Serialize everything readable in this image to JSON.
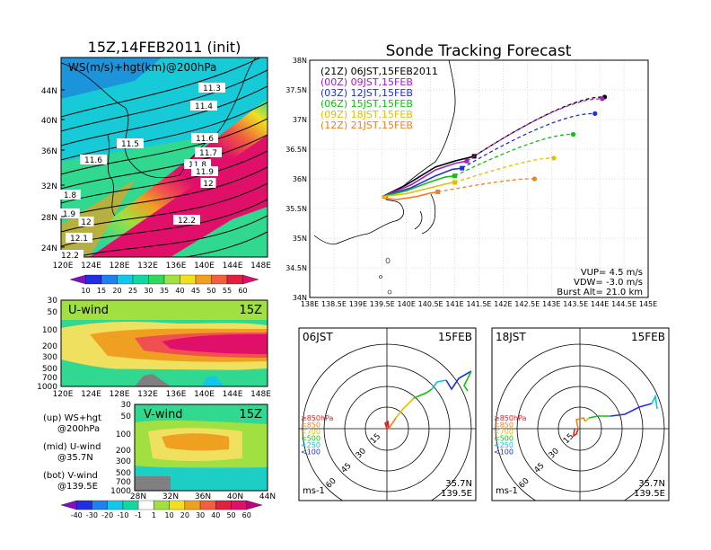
{
  "left": {
    "title": "15Z,14FEB2011 (init)",
    "map": {
      "label": "WS(m/s)+hgt(km)@200hPa",
      "lat_ticks": [
        "44N",
        "40N",
        "36N",
        "32N",
        "28N",
        "24N"
      ],
      "lon_ticks": [
        "120E",
        "124E",
        "128E",
        "132E",
        "136E",
        "140E",
        "144E",
        "148E"
      ],
      "contour_labels": [
        "11.3",
        "11.4",
        "11.5",
        "11.6",
        "11.6",
        "11.7",
        "11.8",
        "11.9",
        "12",
        "1.8",
        "1.9",
        "12",
        "12.1",
        "12.2",
        "12.2"
      ],
      "colorbar": [
        "10",
        "15",
        "20",
        "25",
        "30",
        "35",
        "40",
        "45",
        "50",
        "55",
        "60"
      ]
    },
    "uwind": {
      "label": "U-wind",
      "time": "15Z",
      "p_ticks": [
        "30",
        "50",
        "100",
        "200",
        "300",
        "500",
        "700",
        "1000"
      ],
      "lon_ticks": [
        "120E",
        "124E",
        "128E",
        "132E",
        "136E",
        "140E",
        "144E",
        "148E"
      ]
    },
    "vwind": {
      "label": "V-wind",
      "time": "15Z",
      "p_ticks": [
        "30",
        "50",
        "100",
        "200",
        "300",
        "500",
        "700",
        "1000"
      ],
      "lat_ticks": [
        "28N",
        "32N",
        "36N",
        "40N",
        "44N"
      ]
    },
    "notes": [
      {
        "a": "(up) WS+hgt",
        "b": "@200hPa"
      },
      {
        "a": "(mid) U-wind",
        "b": "@35.7N"
      },
      {
        "a": "(bot) V-wind",
        "b": "@139.5E"
      }
    ],
    "colorbar2": [
      "-40",
      "-30",
      "-20",
      "-10",
      "-1",
      "1",
      "10",
      "20",
      "30",
      "40",
      "50",
      "60"
    ]
  },
  "right": {
    "title": "Sonde Tracking Forecast",
    "chart_data": {
      "type": "line",
      "xlabel": "",
      "ylabel": "",
      "xlim": [
        138,
        145
      ],
      "ylim": [
        34,
        38
      ],
      "x_ticks": [
        "138E",
        "138.5E",
        "139E",
        "139.5E",
        "140E",
        "140.5E",
        "141E",
        "141.5E",
        "142E",
        "142.5E",
        "143E",
        "143.5E",
        "144E",
        "144.5E",
        "145E"
      ],
      "y_ticks": [
        "34N",
        "34.5N",
        "35N",
        "35.5N",
        "36N",
        "36.5N",
        "37N",
        "37.5N",
        "38N"
      ],
      "launch": [
        139.5,
        35.7
      ],
      "series": [
        {
          "name": "(21Z) 06JST,15FEB2011",
          "color": "#000000",
          "points": [
            [
              139.5,
              35.7
            ],
            [
              140.0,
              35.9
            ],
            [
              140.6,
              36.2
            ],
            [
              141.0,
              36.3
            ],
            [
              141.4,
              36.38
            ]
          ],
          "end": [
            144.1,
            37.38
          ]
        },
        {
          "name": "(00Z) 09JST,15FEB",
          "color": "#a020c0",
          "points": [
            [
              139.5,
              35.7
            ],
            [
              140.1,
              35.9
            ],
            [
              140.6,
              36.15
            ],
            [
              141.0,
              36.26
            ],
            [
              141.25,
              36.3
            ]
          ],
          "end": [
            144.05,
            37.35
          ]
        },
        {
          "name": "(03Z) 12JST,15FEB",
          "color": "#2030e0",
          "points": [
            [
              139.5,
              35.7
            ],
            [
              140.1,
              35.85
            ],
            [
              140.6,
              36.05
            ],
            [
              140.95,
              36.16
            ],
            [
              141.15,
              36.18
            ]
          ],
          "end": [
            143.9,
            37.1
          ]
        },
        {
          "name": "(06Z) 15JST,15FEB",
          "color": "#10c010",
          "points": [
            [
              139.5,
              35.7
            ],
            [
              140.0,
              35.8
            ],
            [
              140.5,
              35.95
            ],
            [
              140.8,
              36.03
            ],
            [
              141.0,
              36.05
            ]
          ],
          "end": [
            143.45,
            36.75
          ]
        },
        {
          "name": "(09Z) 18JST,15FEB",
          "color": "#e0c000",
          "points": [
            [
              139.5,
              35.7
            ],
            [
              140.0,
              35.75
            ],
            [
              140.5,
              35.85
            ],
            [
              140.9,
              35.93
            ],
            [
              141.0,
              35.94
            ]
          ],
          "end": [
            143.05,
            36.35
          ]
        },
        {
          "name": "(12Z) 21JST,15FEB",
          "color": "#f08020",
          "points": [
            [
              139.5,
              35.68
            ],
            [
              139.8,
              35.65
            ],
            [
              140.2,
              35.7
            ],
            [
              140.5,
              35.76
            ],
            [
              140.65,
              35.78
            ]
          ],
          "end": [
            142.65,
            36.0
          ]
        }
      ],
      "stats": [
        "VUP= 4.5 m/s",
        "VDW= -3.0 m/s",
        "Burst Alt= 21.0 km"
      ]
    },
    "hodographs": [
      {
        "time": "06JST",
        "date": "15FEB",
        "lat": "35.7N",
        "lon": "139.5E",
        "unit": "ms-1",
        "rings": [
          "15",
          "30",
          "45",
          "60"
        ]
      },
      {
        "time": "18JST",
        "date": "15FEB",
        "lat": "35.7N",
        "lon": "139.5E",
        "unit": "ms-1",
        "rings": [
          "15",
          "30",
          "45",
          "60"
        ]
      }
    ],
    "legend_layers": [
      {
        "label": "≥850hPa",
        "color": "#e02020"
      },
      {
        "label": "<850",
        "color": "#f08020"
      },
      {
        "label": "<700",
        "color": "#e0c000"
      },
      {
        "label": "<500",
        "color": "#10c010"
      },
      {
        "label": "<250",
        "color": "#10c0e0"
      },
      {
        "label": "<100",
        "color": "#2030e0"
      }
    ]
  }
}
